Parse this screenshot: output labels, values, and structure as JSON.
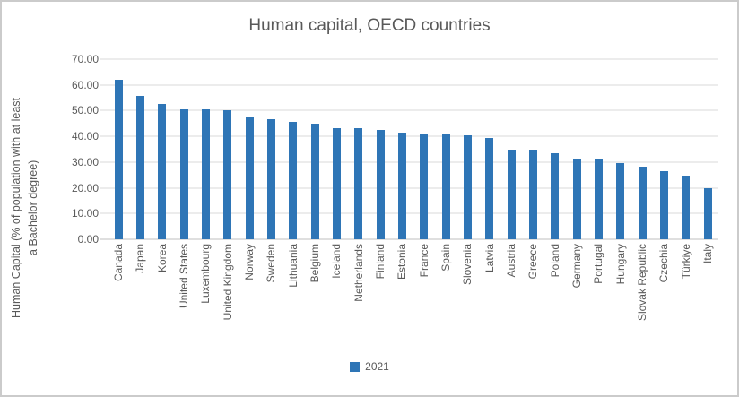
{
  "colors": {
    "bar": "#2E75B6",
    "text": "#595959",
    "gridline": "#D9D9D9",
    "axis_line": "#BFBFBF",
    "frame_border": "#CBCBCB",
    "background": "#FFFFFF"
  },
  "legend": {
    "label": "2021",
    "position": "bottom-center"
  },
  "chart_data": {
    "type": "bar",
    "title": "Human capital, OECD countries",
    "xlabel": "",
    "ylabel": "Human Capital (% of population with at least a Bachelor degree)",
    "ylabel_line1": "Human Capital (% of population with at least",
    "ylabel_line2": "a Bachelor degree)",
    "ylim": [
      0,
      70
    ],
    "ytick_step": 10,
    "ytick_labels": [
      "70.00",
      "60.00",
      "50.00",
      "40.00",
      "30.00",
      "20.00",
      "10.00",
      "0.00"
    ],
    "grid": true,
    "legend_position": "bottom",
    "categories": [
      "Canada",
      "Japan",
      "Korea",
      "United States",
      "Luxembourg",
      "United Kingdom",
      "Norway",
      "Sweden",
      "Lithuania",
      "Belgium",
      "Iceland",
      "Netherlands",
      "Finland",
      "Estonia",
      "France",
      "Spain",
      "Slovenia",
      "Latvia",
      "Austria",
      "Greece",
      "Poland",
      "Germany",
      "Portugal",
      "Hungary",
      "Slovak Republic",
      "Czechia",
      "Türkiye",
      "Italy"
    ],
    "series": [
      {
        "name": "2021",
        "color": "#2E75B6",
        "values": [
          62.0,
          55.8,
          52.5,
          50.5,
          50.4,
          50.0,
          47.6,
          46.7,
          45.5,
          45.0,
          43.2,
          43.1,
          42.6,
          41.3,
          40.8,
          40.6,
          40.3,
          39.3,
          34.8,
          34.7,
          33.4,
          31.4,
          31.2,
          29.5,
          28.1,
          26.4,
          24.7,
          20.0
        ]
      }
    ]
  }
}
